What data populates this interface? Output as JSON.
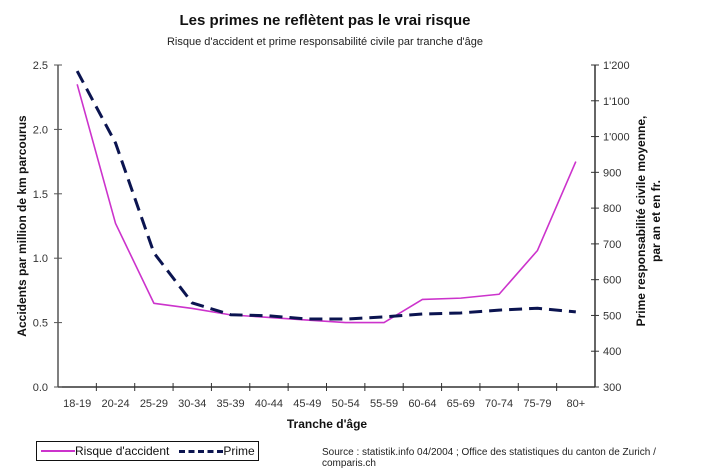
{
  "chart_data": {
    "type": "line",
    "title": "Les primes ne reflètent pas le vrai risque",
    "subtitle": "Risque d'accident et prime responsabilité civile par tranche d'âge",
    "xlabel": "Tranche d'âge",
    "ylabel": "Accidents par million de km parcourus",
    "y2label_line1": "Prime responsabilité civile moyenne,",
    "y2label_line2": "par an et en fr.",
    "categories": [
      "18-19",
      "20-24",
      "25-29",
      "30-34",
      "35-39",
      "40-44",
      "45-49",
      "50-54",
      "55-59",
      "60-64",
      "65-69",
      "70-74",
      "75-79",
      "80+"
    ],
    "ylim": [
      0,
      2.5
    ],
    "y2lim": [
      300,
      1200
    ],
    "yticks": [
      "0.0",
      "0.5",
      "1.0",
      "1.5",
      "2.0",
      "2.5"
    ],
    "y2ticks": [
      "300",
      "400",
      "500",
      "600",
      "700",
      "800",
      "900",
      "1'000",
      "1'100",
      "1'200"
    ],
    "series": [
      {
        "name": "Risque d'accident",
        "axis": "left",
        "color": "#cc33cc",
        "style": "solid",
        "values": [
          2.35,
          1.27,
          0.65,
          0.61,
          0.56,
          0.54,
          0.52,
          0.5,
          0.5,
          0.68,
          0.69,
          0.72,
          1.06,
          1.75
        ]
      },
      {
        "name": "Prime",
        "axis": "right",
        "color": "#0b1450",
        "style": "dashed",
        "values": [
          1183,
          982,
          675,
          535,
          502,
          499,
          490,
          490,
          496,
          504,
          507,
          515,
          520,
          510
        ]
      }
    ],
    "legend": "bottom-left",
    "grid": false
  },
  "source": "Source : statistik.info 04/2004 ; Office des statistiques du canton de Zurich / comparis.ch"
}
